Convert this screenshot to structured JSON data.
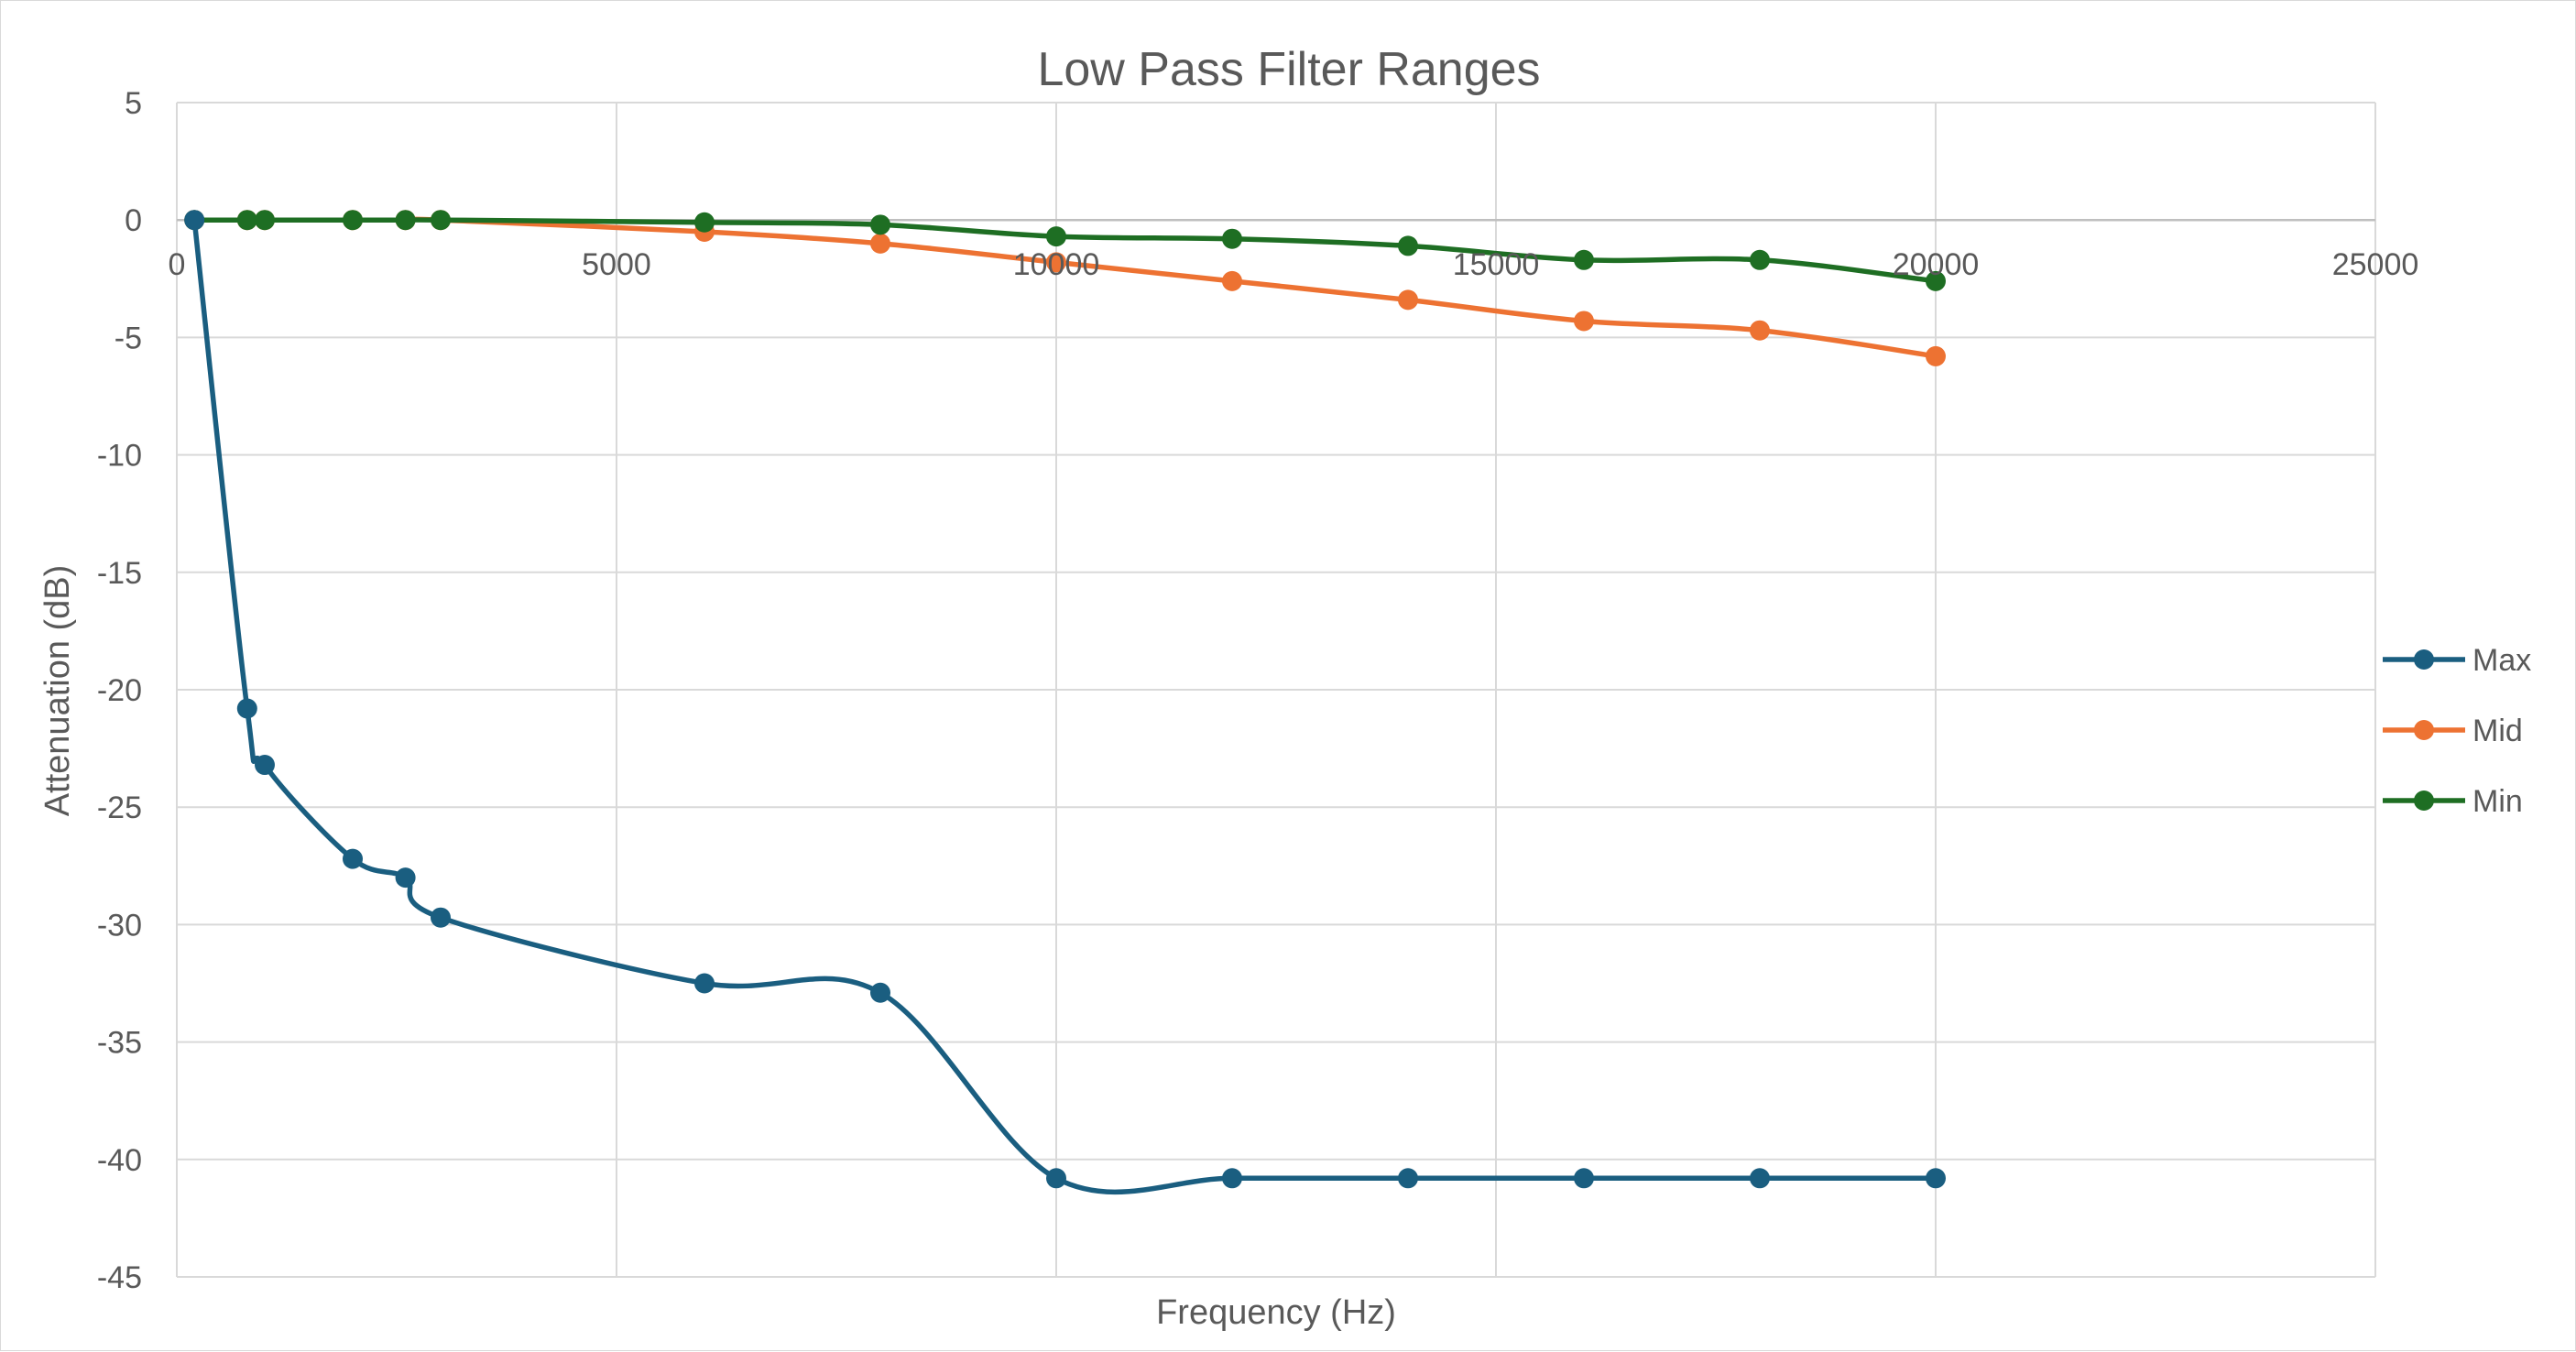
{
  "chart_data": {
    "type": "scatter",
    "title": "Low Pass Filter Ranges",
    "xlabel": "Frequency (Hz)",
    "ylabel": "Attenuation (dB)",
    "xlim": [
      0,
      25000
    ],
    "ylim": [
      -45,
      5
    ],
    "xticks": [
      0,
      5000,
      10000,
      15000,
      20000,
      25000
    ],
    "yticks": [
      5,
      0,
      -5,
      -10,
      -15,
      -20,
      -25,
      -30,
      -35,
      -40,
      -45
    ],
    "grid": true,
    "smooth_lines": true,
    "markers": true,
    "legend_position": "right",
    "series": [
      {
        "name": "Max",
        "color": "#1a5e80",
        "x": [
          200,
          800,
          1000,
          2000,
          2600,
          3000,
          6000,
          8000,
          10000,
          12000,
          14000,
          16000,
          18000,
          20000
        ],
        "y": [
          0,
          -20.8,
          -23.2,
          -27.2,
          -28,
          -29.7,
          -32.5,
          -32.9,
          -40.8,
          -40.8,
          -40.8,
          -40.8,
          -40.8,
          -40.8
        ]
      },
      {
        "name": "Mid",
        "color": "#ed7232",
        "x": [
          200,
          800,
          1000,
          2000,
          2600,
          3000,
          6000,
          8000,
          10000,
          12000,
          14000,
          16000,
          18000,
          20000
        ],
        "y": [
          0,
          0,
          0,
          0,
          0,
          0,
          -0.5,
          -1.0,
          -1.8,
          -2.6,
          -3.4,
          -4.3,
          -4.7,
          -5.8
        ]
      },
      {
        "name": "Min",
        "color": "#1e6e23",
        "x": [
          200,
          800,
          1000,
          2000,
          2600,
          3000,
          6000,
          8000,
          10000,
          12000,
          14000,
          16000,
          18000,
          20000
        ],
        "y": [
          0,
          0,
          0,
          0,
          0,
          0,
          -0.1,
          -0.2,
          -0.7,
          -0.8,
          -1.1,
          -1.7,
          -1.7,
          -2.6
        ]
      }
    ]
  }
}
